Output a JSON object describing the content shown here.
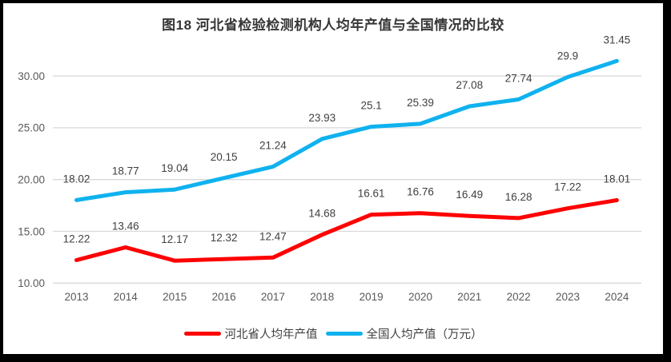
{
  "chart_data": {
    "type": "line",
    "title": "图18 河北省检验检测机构人均年产值与全国情况的比较",
    "categories": [
      "2013",
      "2014",
      "2015",
      "2016",
      "2017",
      "2018",
      "2019",
      "2020",
      "2021",
      "2022",
      "2023",
      "2024"
    ],
    "series": [
      {
        "name": "河北省人均年产值",
        "color": "#FE0000",
        "values": [
          12.22,
          13.46,
          12.17,
          12.32,
          12.47,
          14.68,
          16.61,
          16.76,
          16.49,
          16.28,
          17.22,
          18.01
        ]
      },
      {
        "name": "全国人均产值（万元）",
        "color": "#0FB2EE",
        "values": [
          18.02,
          18.77,
          19.04,
          20.15,
          21.24,
          23.93,
          25.1,
          25.39,
          27.08,
          27.74,
          29.9,
          31.45
        ]
      }
    ],
    "yticks": [
      "10.00",
      "15.00",
      "20.00",
      "25.00",
      "30.00"
    ],
    "ylim": [
      10,
      30
    ],
    "xlabel": "",
    "ylabel": "",
    "grid": true,
    "legend_position": "bottom"
  },
  "styles": {
    "grid_color": "#D9D9D9",
    "axis_label_color": "#595959",
    "data_label_color": "#404040",
    "title_color": "#363636",
    "frame_color": "#000000"
  }
}
